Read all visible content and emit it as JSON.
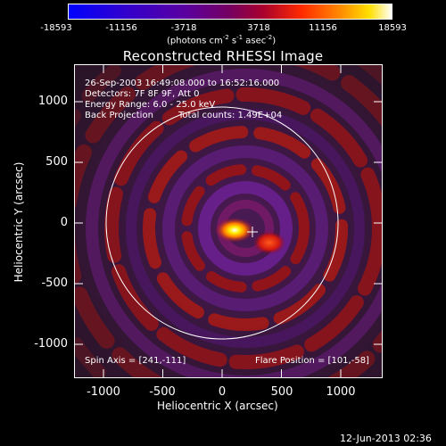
{
  "colorbar": {
    "ticks": [
      "-18593",
      "-11156",
      "-3718",
      "3718",
      "11156",
      "18593"
    ],
    "units_label": "(photons cm",
    "units_exp1": "-2",
    "units_mid": " s",
    "units_exp2": "-1",
    "units_tail": " asec",
    "units_exp3": "-2",
    "units_close": ")",
    "colors": [
      "#0000ff",
      "#4b00a6",
      "#6e008f",
      "#a8002e",
      "#ff2a00",
      "#ff8a00",
      "#ffff00",
      "#ffffff"
    ]
  },
  "plot": {
    "title": "Reconstructed RHESSI Image",
    "annotations": {
      "time_range": "26-Sep-2003 16:49:08.000 to 16:52:16.000",
      "detectors": "Detectors: 7F 8F 9F, Att 0",
      "energy_range": "Energy Range: 6.0 - 25.0 keV",
      "method": "Back Projection",
      "total_counts": "Total counts: 1.49E+04",
      "spin_axis": "Spin Axis = [241,-111]",
      "flare_position": "Flare Position = [101,-58]"
    },
    "x_ticks": [
      "-1000",
      "-500",
      "0",
      "500",
      "1000"
    ],
    "y_ticks": [
      "1000",
      "500",
      "0",
      "-500",
      "-1000"
    ],
    "xlabel": "Heliocentric X (arcsec)",
    "ylabel": "Heliocentric Y (arcsec)"
  },
  "footer_date": "12-Jun-2013 02:36"
}
